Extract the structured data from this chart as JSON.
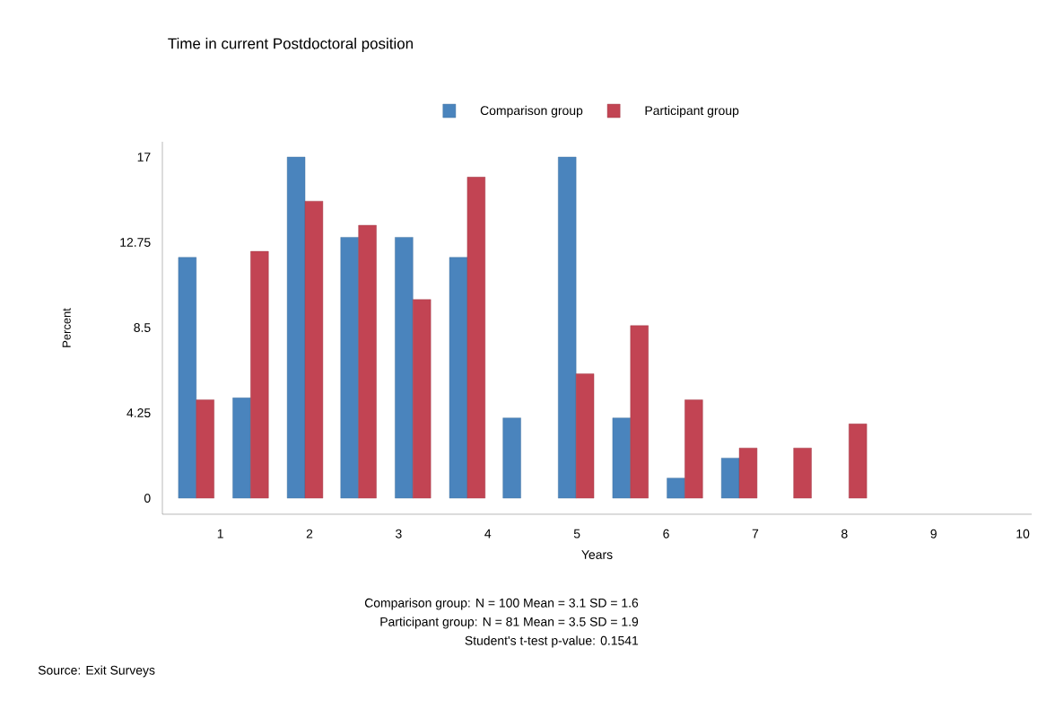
{
  "chart_data": {
    "type": "bar",
    "title": "Time in current Postdoctoral position",
    "xlabel": "Years",
    "ylabel": "Percent",
    "x": [
      0.73,
      1.34,
      1.95,
      2.55,
      3.16,
      3.77,
      4.37,
      4.99,
      5.6,
      6.21,
      6.82,
      7.43,
      8.05
    ],
    "series": [
      {
        "name": "Comparison group",
        "color": "#4a84bd",
        "values": [
          12,
          5,
          17,
          13,
          13,
          12,
          4,
          17,
          4,
          1,
          2,
          null,
          null
        ]
      },
      {
        "name": "Participant group",
        "color": "#c24453",
        "values": [
          4.9,
          12.3,
          14.8,
          13.6,
          9.9,
          16.0,
          null,
          6.2,
          8.6,
          4.9,
          2.5,
          2.5,
          3.7
        ]
      }
    ],
    "xlim": [
      0.35,
      10.1
    ],
    "xticks": [
      1,
      2,
      3,
      4,
      5,
      6,
      7,
      8,
      9,
      10
    ],
    "ylim": [
      -0.8,
      17.76
    ],
    "yticks": [
      0,
      4.25,
      8.5,
      12.75,
      17
    ],
    "grid": false,
    "legend": "top",
    "annotations": [
      "Comparison group: N = 100  Mean = 3.1 SD = 1.6",
      "Participant group: N = 81  Mean = 3.5 SD = 1.9",
      "Student's t-test p-value: 0.1541",
      "Source: Exit Surveys"
    ]
  }
}
